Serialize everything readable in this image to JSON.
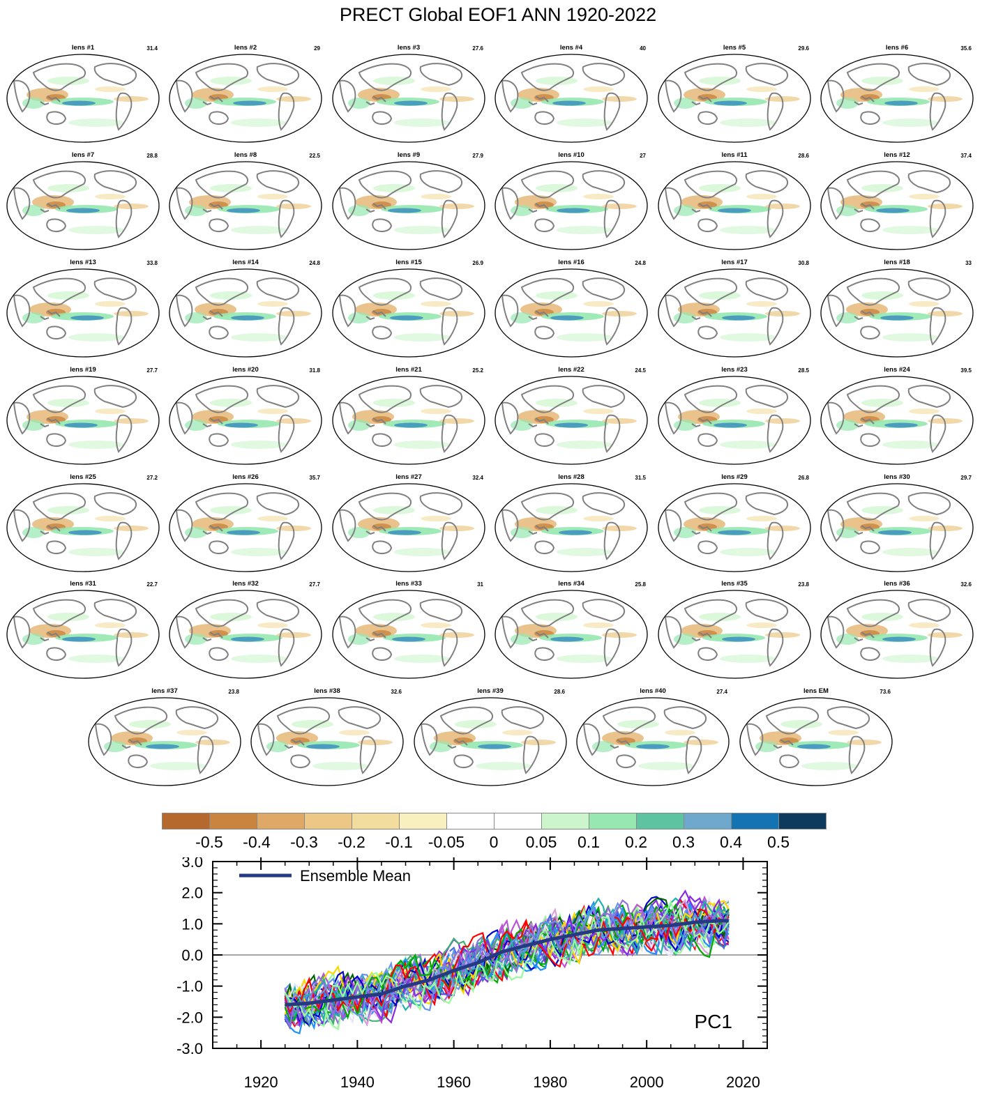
{
  "title": "PRECT Global EOF1 ANN 1920-2022",
  "panels": [
    {
      "label": "lens #1",
      "value": "31.4"
    },
    {
      "label": "lens #2",
      "value": "29"
    },
    {
      "label": "lens #3",
      "value": "27.6"
    },
    {
      "label": "lens #4",
      "value": "40"
    },
    {
      "label": "lens #5",
      "value": "29.6"
    },
    {
      "label": "lens #6",
      "value": "35.6"
    },
    {
      "label": "lens #7",
      "value": "28.8"
    },
    {
      "label": "lens #8",
      "value": "22.5"
    },
    {
      "label": "lens #9",
      "value": "27.9"
    },
    {
      "label": "lens #10",
      "value": "27"
    },
    {
      "label": "lens #11",
      "value": "28.6"
    },
    {
      "label": "lens #12",
      "value": "37.4"
    },
    {
      "label": "lens #13",
      "value": "33.8"
    },
    {
      "label": "lens #14",
      "value": "24.8"
    },
    {
      "label": "lens #15",
      "value": "26.9"
    },
    {
      "label": "lens #16",
      "value": "24.8"
    },
    {
      "label": "lens #17",
      "value": "30.8"
    },
    {
      "label": "lens #18",
      "value": "33"
    },
    {
      "label": "lens #19",
      "value": "27.7"
    },
    {
      "label": "lens #20",
      "value": "31.8"
    },
    {
      "label": "lens #21",
      "value": "25.2"
    },
    {
      "label": "lens #22",
      "value": "24.5"
    },
    {
      "label": "lens #23",
      "value": "28.5"
    },
    {
      "label": "lens #24",
      "value": "39.5"
    },
    {
      "label": "lens #25",
      "value": "27.2"
    },
    {
      "label": "lens #26",
      "value": "35.7"
    },
    {
      "label": "lens #27",
      "value": "32.4"
    },
    {
      "label": "lens #28",
      "value": "31.5"
    },
    {
      "label": "lens #29",
      "value": "26.8"
    },
    {
      "label": "lens #30",
      "value": "29.7"
    },
    {
      "label": "lens #31",
      "value": "22.7"
    },
    {
      "label": "lens #32",
      "value": "27.7"
    },
    {
      "label": "lens #33",
      "value": "31"
    },
    {
      "label": "lens #34",
      "value": "25.8"
    },
    {
      "label": "lens #35",
      "value": "23.8"
    },
    {
      "label": "lens #36",
      "value": "32.6"
    },
    {
      "label": "lens #37",
      "value": "23.8"
    },
    {
      "label": "lens #38",
      "value": "32.6"
    },
    {
      "label": "lens #39",
      "value": "28.6"
    },
    {
      "label": "lens #40",
      "value": "27.4"
    },
    {
      "label": "lens EM",
      "value": "73.6"
    }
  ],
  "colorbar": {
    "labels": [
      "-0.5",
      "-0.4",
      "-0.3",
      "-0.2",
      "-0.1",
      "-0.05",
      "0",
      "0.05",
      "0.1",
      "0.2",
      "0.3",
      "0.4",
      "0.5"
    ],
    "colors": [
      "#b5692d",
      "#c98440",
      "#dfa866",
      "#edc785",
      "#f2dc9e",
      "#f8f0be",
      "#ffffff",
      "#ffffff",
      "#ccf5cc",
      "#96e8b0",
      "#5dc3a0",
      "#6ea8cc",
      "#1473b3",
      "#0e3a5e"
    ]
  },
  "chart_data": {
    "type": "line",
    "title": "",
    "annotation": "PC1",
    "xlabel": "",
    "ylabel": "",
    "xlim": [
      1910,
      2025
    ],
    "ylim": [
      -3.0,
      3.0
    ],
    "x_ticks": [
      "1920",
      "1940",
      "1960",
      "1980",
      "2000",
      "2020"
    ],
    "y_ticks": [
      "3.0",
      "2.0",
      "1.0",
      "0.0",
      "-1.0",
      "-2.0",
      "-3.0"
    ],
    "legend": {
      "placement": "top-left",
      "entries": [
        "Ensemble Mean"
      ]
    },
    "zero_line": true,
    "series": [
      {
        "name": "Ensemble Mean",
        "color": "#253a82",
        "width": 5,
        "x": [
          1925,
          1930,
          1935,
          1940,
          1945,
          1950,
          1955,
          1960,
          1965,
          1970,
          1975,
          1980,
          1985,
          1990,
          1995,
          2000,
          2005,
          2010,
          2015,
          2017
        ],
        "y": [
          -1.6,
          -1.55,
          -1.45,
          -1.35,
          -1.25,
          -1.0,
          -0.8,
          -0.5,
          -0.25,
          0.1,
          0.3,
          0.5,
          0.65,
          0.8,
          0.85,
          0.9,
          0.95,
          1.05,
          1.1,
          1.1
        ]
      }
    ],
    "member_series_count": 40,
    "member_years": [
      1925,
      2017
    ],
    "member_colors": [
      "#0000cc",
      "#8a2be2",
      "#00aa00",
      "#20b2aa",
      "#ff0000",
      "#9370db",
      "#6495ed",
      "#98fb98",
      "#006400",
      "#ba55d3",
      "#1e90ff",
      "#dda0dd",
      "#3cb371",
      "#4169e1",
      "#e6e6fa",
      "#ffd700"
    ]
  }
}
